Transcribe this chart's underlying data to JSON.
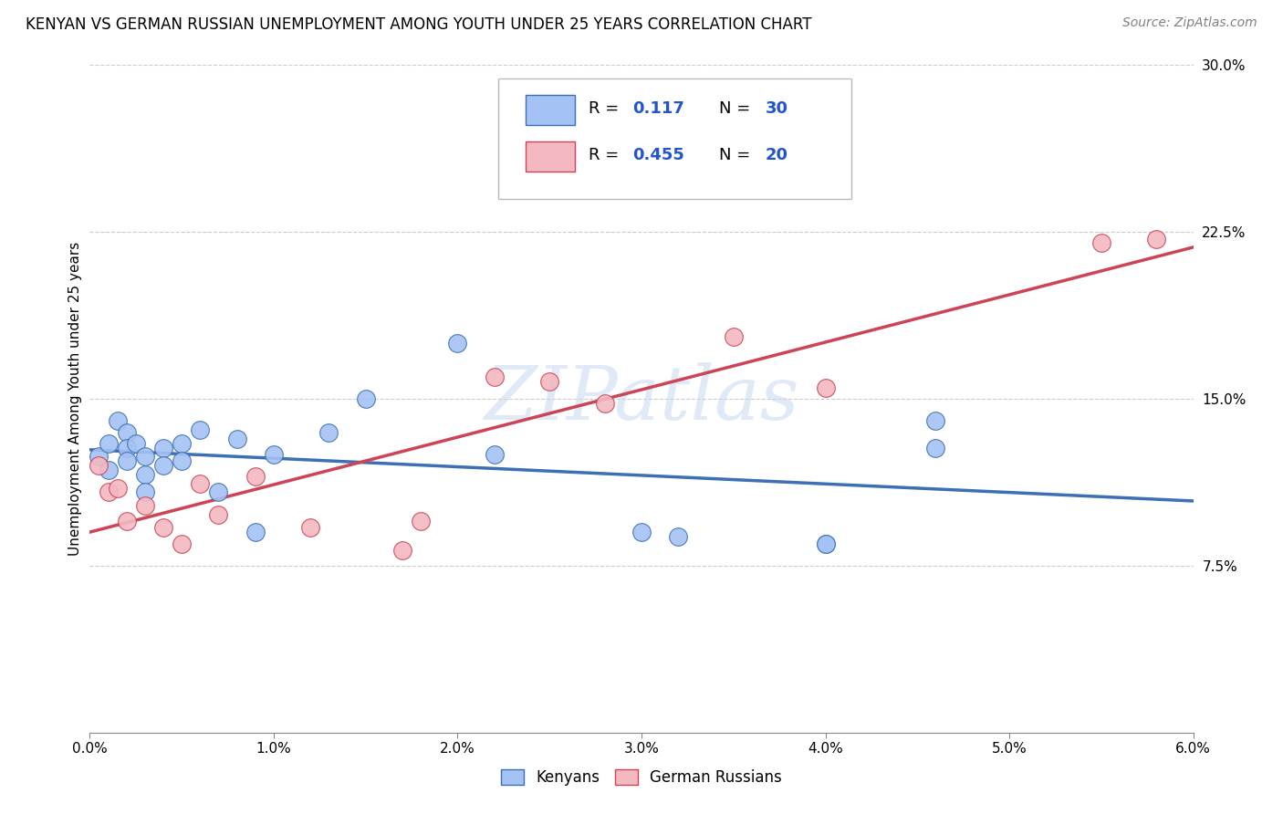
{
  "title": "KENYAN VS GERMAN RUSSIAN UNEMPLOYMENT AMONG YOUTH UNDER 25 YEARS CORRELATION CHART",
  "source": "Source: ZipAtlas.com",
  "ylabel": "Unemployment Among Youth under 25 years",
  "xlim": [
    0.0,
    0.06
  ],
  "ylim": [
    0.0,
    0.3
  ],
  "kenyan_R": 0.117,
  "kenyan_N": 30,
  "german_russian_R": 0.455,
  "german_russian_N": 20,
  "kenyan_color": "#a4c2f4",
  "german_russian_color": "#f4b8c1",
  "kenyan_line_color": "#3d6fb5",
  "german_russian_line_color": "#cc4455",
  "legend_label_kenyan": "Kenyans",
  "legend_label_german": "German Russians",
  "kenyan_x": [
    0.0005,
    0.001,
    0.001,
    0.0015,
    0.002,
    0.002,
    0.002,
    0.0025,
    0.003,
    0.003,
    0.003,
    0.004,
    0.004,
    0.005,
    0.005,
    0.006,
    0.007,
    0.008,
    0.009,
    0.01,
    0.013,
    0.015,
    0.02,
    0.022,
    0.03,
    0.032,
    0.04,
    0.04,
    0.046,
    0.046
  ],
  "kenyan_y": [
    0.124,
    0.13,
    0.118,
    0.14,
    0.135,
    0.128,
    0.122,
    0.13,
    0.124,
    0.116,
    0.108,
    0.128,
    0.12,
    0.13,
    0.122,
    0.136,
    0.108,
    0.132,
    0.09,
    0.125,
    0.135,
    0.15,
    0.175,
    0.125,
    0.09,
    0.088,
    0.085,
    0.085,
    0.14,
    0.128
  ],
  "german_x": [
    0.0005,
    0.001,
    0.0015,
    0.002,
    0.003,
    0.004,
    0.005,
    0.006,
    0.007,
    0.009,
    0.012,
    0.017,
    0.018,
    0.022,
    0.025,
    0.028,
    0.035,
    0.04,
    0.055,
    0.058
  ],
  "german_y": [
    0.12,
    0.108,
    0.11,
    0.095,
    0.102,
    0.092,
    0.085,
    0.112,
    0.098,
    0.115,
    0.092,
    0.082,
    0.095,
    0.16,
    0.158,
    0.148,
    0.178,
    0.155,
    0.22,
    0.222
  ],
  "watermark_text": "ZIPatlas",
  "background_color": "#ffffff",
  "grid_color": "#cccccc",
  "title_fontsize": 12,
  "source_fontsize": 10,
  "tick_fontsize": 11,
  "label_fontsize": 11
}
